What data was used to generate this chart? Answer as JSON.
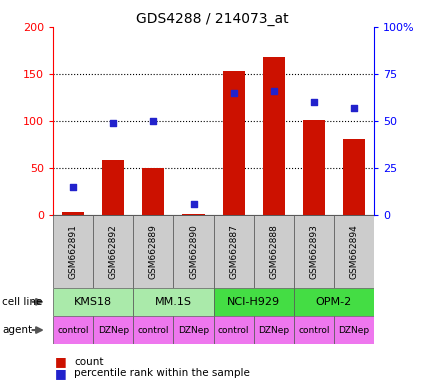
{
  "title": "GDS4288 / 214073_at",
  "samples": [
    "GSM662891",
    "GSM662892",
    "GSM662889",
    "GSM662890",
    "GSM662887",
    "GSM662888",
    "GSM662893",
    "GSM662894"
  ],
  "bar_values": [
    3,
    58,
    50,
    1,
    153,
    168,
    101,
    81
  ],
  "dot_values_pct": [
    15,
    49,
    50,
    6,
    65,
    66,
    60,
    57
  ],
  "cell_lines": [
    {
      "label": "KMS18",
      "span": [
        0,
        2
      ],
      "color": "#AAEAAA"
    },
    {
      "label": "MM.1S",
      "span": [
        2,
        4
      ],
      "color": "#AAEAAA"
    },
    {
      "label": "NCI-H929",
      "span": [
        4,
        6
      ],
      "color": "#44DD44"
    },
    {
      "label": "OPM-2",
      "span": [
        6,
        8
      ],
      "color": "#44DD44"
    }
  ],
  "agents": [
    "control",
    "DZNep",
    "control",
    "DZNep",
    "control",
    "DZNep",
    "control",
    "DZNep"
  ],
  "agent_color": "#EE77EE",
  "bar_color": "#CC1100",
  "dot_color": "#2222CC",
  "ylim_left": [
    0,
    200
  ],
  "ylim_right": [
    0,
    100
  ],
  "yticks_left": [
    0,
    50,
    100,
    150,
    200
  ],
  "yticks_right": [
    0,
    25,
    50,
    75,
    100
  ],
  "ytick_labels_right": [
    "0",
    "25",
    "50",
    "75",
    "100%"
  ],
  "grid_values": [
    50,
    100,
    150
  ],
  "label_count": "count",
  "label_pct": "percentile rank within the sample",
  "cell_line_label": "cell line",
  "agent_label": "agent",
  "sample_bg": "#CCCCCC",
  "border_color": "#555555"
}
